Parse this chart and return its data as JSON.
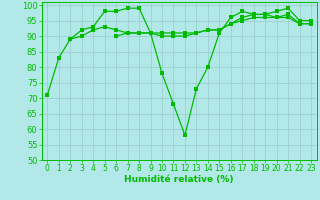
{
  "x": [
    0,
    1,
    2,
    3,
    4,
    5,
    6,
    7,
    8,
    9,
    10,
    11,
    12,
    13,
    14,
    15,
    16,
    17,
    18,
    19,
    20,
    21,
    22,
    23
  ],
  "line1": [
    71,
    83,
    89,
    92,
    93,
    98,
    98,
    99,
    99,
    91,
    78,
    68,
    58,
    73,
    80,
    91,
    96,
    98,
    97,
    97,
    98,
    99,
    95,
    95
  ],
  "line2": [
    null,
    null,
    89,
    90,
    92,
    93,
    92,
    91,
    91,
    91,
    90,
    90,
    90,
    91,
    92,
    92,
    94,
    96,
    97,
    97,
    96,
    97,
    94,
    94
  ],
  "line3": [
    null,
    null,
    null,
    null,
    null,
    null,
    90,
    91,
    91,
    91,
    91,
    91,
    91,
    91,
    92,
    92,
    94,
    95,
    96,
    96,
    96,
    96,
    94,
    94
  ],
  "background_color": "#b3e8e8",
  "line_color": "#00bb00",
  "grid_major_color": "#99cccc",
  "grid_minor_color": "#aadddd",
  "xlabel": "Humidité relative (%)",
  "ylim": [
    50,
    101
  ],
  "xlim": [
    -0.5,
    23.5
  ],
  "yticks": [
    50,
    55,
    60,
    65,
    70,
    75,
    80,
    85,
    90,
    95,
    100
  ],
  "xticks": [
    0,
    1,
    2,
    3,
    4,
    5,
    6,
    7,
    8,
    9,
    10,
    11,
    12,
    13,
    14,
    15,
    16,
    17,
    18,
    19,
    20,
    21,
    22,
    23
  ],
  "marker_size": 2.2,
  "linewidth": 0.9,
  "xlabel_fontsize": 6.5,
  "tick_fontsize": 5.5
}
